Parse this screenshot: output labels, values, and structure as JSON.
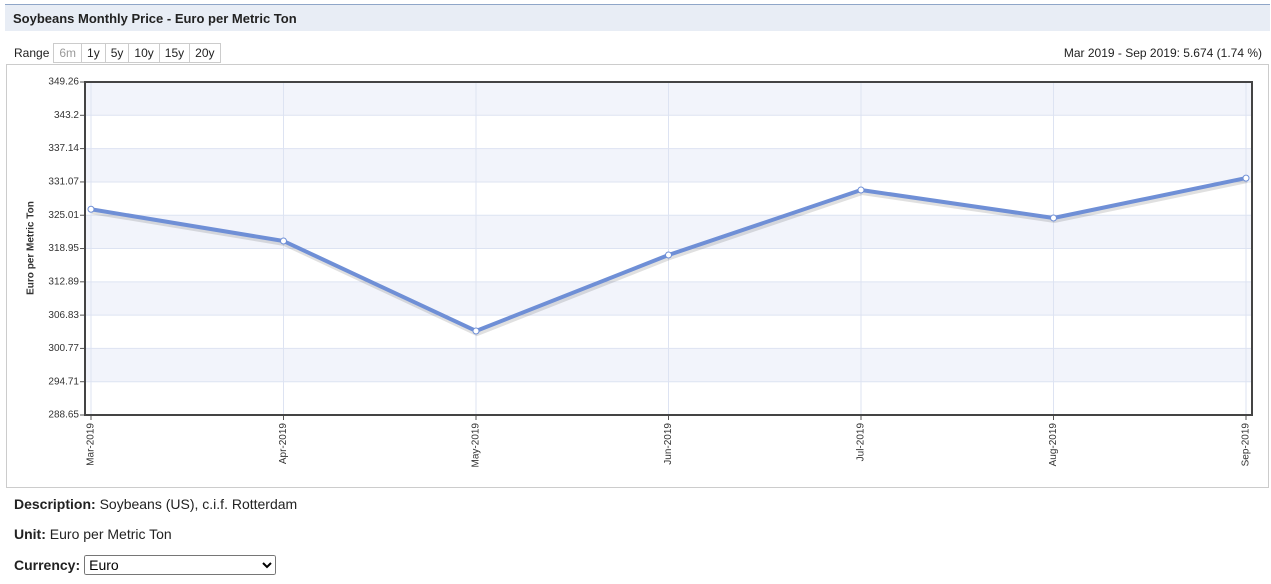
{
  "header": {
    "title": "Soybeans Monthly Price - Euro per Metric Ton"
  },
  "range": {
    "label": "Range",
    "buttons": [
      "6m",
      "1y",
      "5y",
      "10y",
      "15y",
      "20y"
    ],
    "change": "Mar 2019 - Sep 2019: 5.674 (1.74 %)"
  },
  "chart_data": {
    "type": "line",
    "y_label": "Euro per Metric Ton",
    "categories": [
      "Mar-2019",
      "Apr-2019",
      "May-2019",
      "Jun-2019",
      "Jul-2019",
      "Aug-2019",
      "Sep-2019"
    ],
    "series": [
      {
        "name": "Soybeans",
        "color": "#6f8fd6",
        "values": [
          326.1,
          320.32,
          303.94,
          317.77,
          329.6,
          324.51,
          331.77
        ]
      }
    ],
    "ylim": [
      288.65,
      349.26
    ],
    "yticks": [
      288.65,
      294.71,
      300.77,
      306.83,
      312.89,
      318.95,
      325.01,
      331.07,
      337.14,
      343.2,
      349.26
    ],
    "grid": true
  },
  "info": {
    "description_label": "Description:",
    "description": "Soybeans (US), c.i.f. Rotterdam",
    "unit_label": "Unit:",
    "unit": "Euro per Metric Ton",
    "currency_label": "Currency:",
    "currency": "Euro"
  }
}
